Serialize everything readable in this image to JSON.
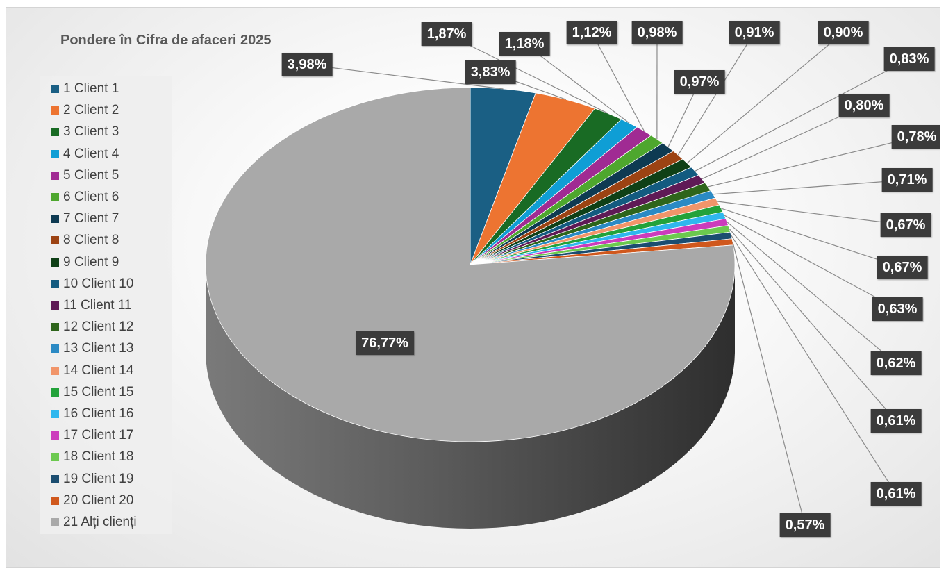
{
  "chart_data": {
    "type": "pie",
    "title": "Pondere în Cifra de afaceri 2025",
    "legend_position": "left",
    "style": "3D",
    "slices": [
      {
        "legend": "1 Client 1",
        "value": 3.98,
        "label": "3,98%",
        "color": "#1a5f84"
      },
      {
        "legend": "2 Client 2",
        "value": 3.83,
        "label": "3,83%",
        "color": "#ed7431"
      },
      {
        "legend": "3 Client 3",
        "value": 1.87,
        "label": "1,87%",
        "color": "#196b24"
      },
      {
        "legend": "4 Client 4",
        "value": 1.18,
        "label": "1,18%",
        "color": "#0f9ed5"
      },
      {
        "legend": "5 Client 5",
        "value": 1.12,
        "label": "1,12%",
        "color": "#a02b93"
      },
      {
        "legend": "6 Client 6",
        "value": 0.98,
        "label": "0,98%",
        "color": "#4ea72e"
      },
      {
        "legend": "7 Client 7",
        "value": 0.97,
        "label": "0,97%",
        "color": "#0e3a52"
      },
      {
        "legend": "8 Client 8",
        "value": 0.91,
        "label": "0,91%",
        "color": "#9c4313"
      },
      {
        "legend": "9 Client 9",
        "value": 0.9,
        "label": "0,90%",
        "color": "#0f4016"
      },
      {
        "legend": "10 Client 10",
        "value": 0.83,
        "label": "0,83%",
        "color": "#135b80"
      },
      {
        "legend": "11 Client 11",
        "value": 0.8,
        "label": "0,80%",
        "color": "#5f1a56"
      },
      {
        "legend": "12 Client 12",
        "value": 0.78,
        "label": "0,78%",
        "color": "#2e651b"
      },
      {
        "legend": "13 Client 13",
        "value": 0.71,
        "label": "0,71%",
        "color": "#2b8ac4"
      },
      {
        "legend": "14 Client 14",
        "value": 0.67,
        "label": "0,67%",
        "color": "#f1956a"
      },
      {
        "legend": "15 Client 15",
        "value": 0.67,
        "label": "0,67%",
        "color": "#23a23a"
      },
      {
        "legend": "16 Client 16",
        "value": 0.63,
        "label": "0,63%",
        "color": "#2fb7ee"
      },
      {
        "legend": "17 Client 17",
        "value": 0.62,
        "label": "0,62%",
        "color": "#cc3cbc"
      },
      {
        "legend": "18 Client 18",
        "value": 0.61,
        "label": "0,61%",
        "color": "#6cc94f"
      },
      {
        "legend": "19 Client 19",
        "value": 0.61,
        "label": "0,61%",
        "color": "#1b4d70"
      },
      {
        "legend": "20 Client 20",
        "value": 0.57,
        "label": "0,57%",
        "color": "#d0581d"
      },
      {
        "legend": "21 Alți clienți",
        "value": 76.77,
        "label": "76,77%",
        "color": "#a9a9a9"
      }
    ]
  }
}
